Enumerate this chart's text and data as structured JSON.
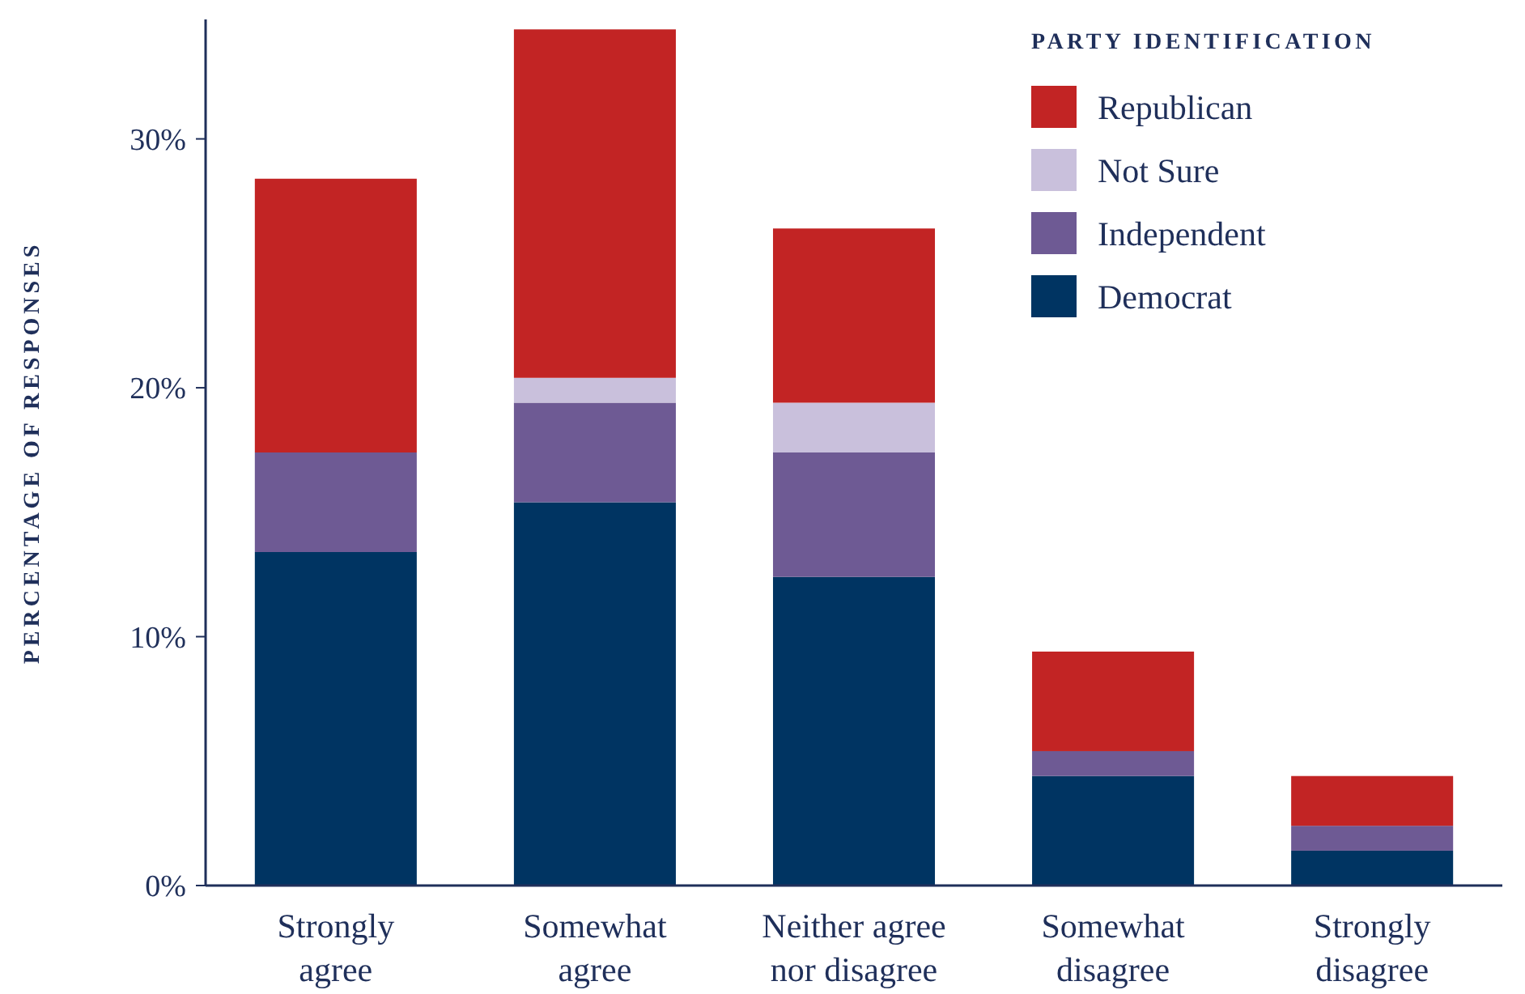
{
  "chart_data": {
    "type": "bar",
    "stacked": true,
    "ylabel": "PERCENTAGE OF RESPONSES",
    "legend_title": "PARTY IDENTIFICATION",
    "legend": "top right",
    "grid": false,
    "categories": [
      "Strongly agree",
      "Somewhat agree",
      "Neither agree nor disagree",
      "Somewhat disagree",
      "Strongly disagree"
    ],
    "ylim": [
      0,
      34.8
    ],
    "yticks": [
      {
        "value": 0,
        "label": "0%"
      },
      {
        "value": 10,
        "label": "10%"
      },
      {
        "value": 20,
        "label": "20%"
      },
      {
        "value": 30,
        "label": "30%"
      }
    ],
    "series": [
      {
        "name": "Democrat",
        "color": "#003462",
        "values": [
          13.4,
          15.4,
          12.4,
          4.4,
          1.4
        ]
      },
      {
        "name": "Independent",
        "color": "#6e5a94",
        "values": [
          4,
          4,
          5,
          1,
          1
        ]
      },
      {
        "name": "Not Sure",
        "color": "#c9c0dc",
        "values": [
          0,
          1,
          2,
          0,
          0
        ]
      },
      {
        "name": "Republican",
        "color": "#c22424",
        "values": [
          11,
          14,
          7,
          4,
          2
        ]
      }
    ]
  }
}
